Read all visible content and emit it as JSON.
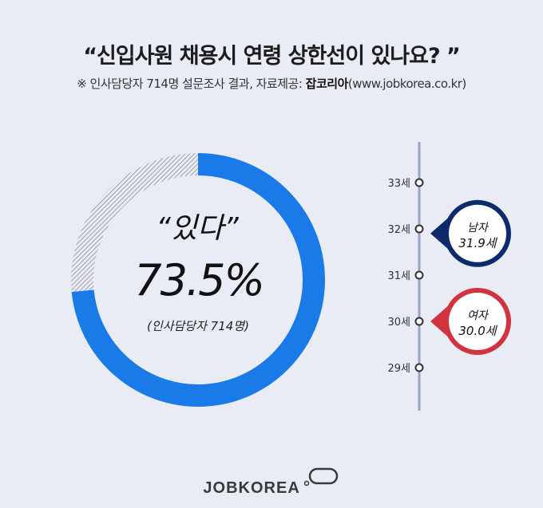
{
  "header": {
    "title": "“신입사원 채용시 연령 상한선이 있나요? ”",
    "subtitle_prefix": "※ 인사담당자 714명 설문조사 결과,  자료제공:",
    "subtitle_source": "잡코리아",
    "subtitle_url": "(www.jobkorea.co.kr)"
  },
  "chart_data": [
    {
      "type": "pie",
      "categories": [
        "있다",
        ""
      ],
      "values": [
        73.5,
        26.5
      ],
      "center_label": "“있다”",
      "center_value": "73.5%",
      "center_note": "(인사담당자 714명)",
      "colors": [
        "#1a7ae8",
        "#8a8f9c"
      ]
    },
    {
      "type": "scatter",
      "axis_ticks": [
        "33세",
        "32세",
        "31세",
        "30세",
        "29세"
      ],
      "tick_values": [
        33,
        32,
        31,
        30,
        29
      ],
      "ylim": [
        29,
        33
      ],
      "points": [
        {
          "label": "남자",
          "value": 31.9,
          "value_label": "31.9세",
          "color": "#0d2a6b"
        },
        {
          "label": "여자",
          "value": 30.0,
          "value_label": "30.0세",
          "color": "#d1333f"
        }
      ]
    }
  ],
  "footer": {
    "brand": "JOBKOREA"
  }
}
